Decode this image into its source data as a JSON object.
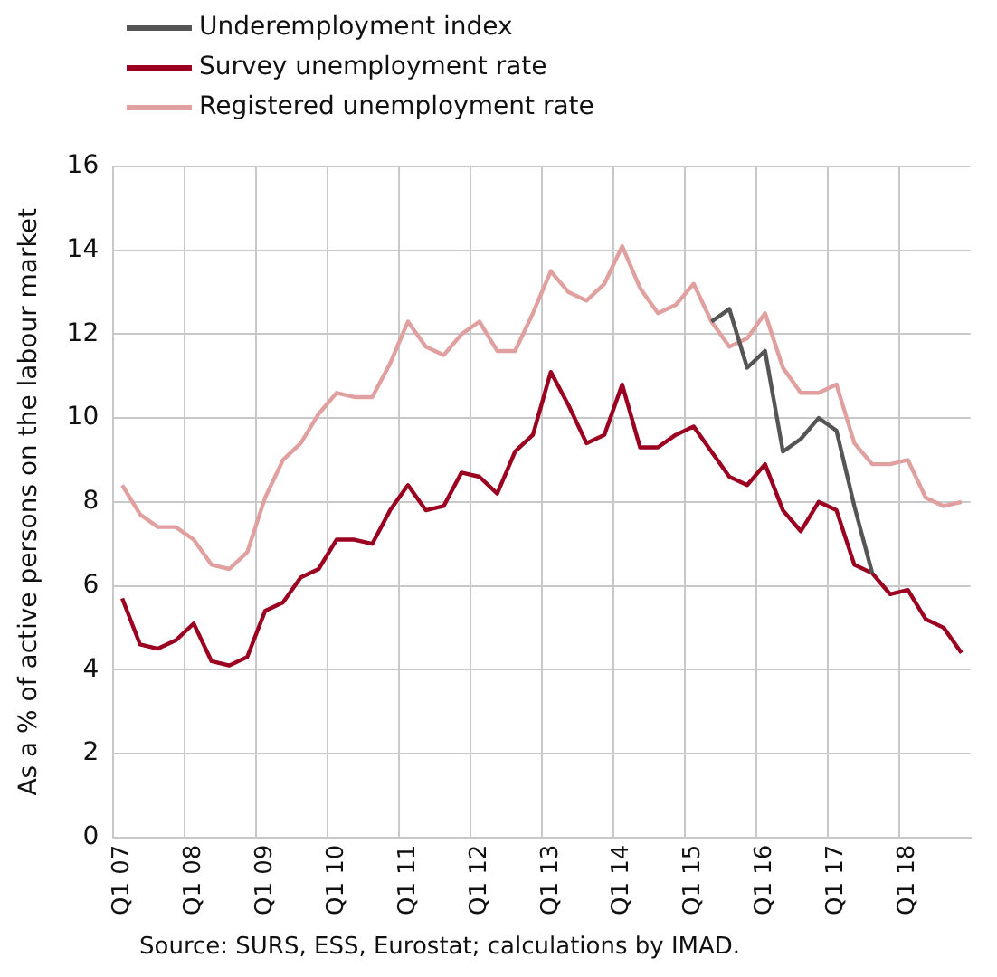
{
  "chart_data": {
    "type": "line",
    "ylabel": "As a % of active persons on the labour market",
    "categories": [
      "Q1 07",
      null,
      null,
      null,
      "Q1 08",
      null,
      null,
      null,
      "Q1 09",
      null,
      null,
      null,
      "Q1 10",
      null,
      null,
      null,
      "Q1 11",
      null,
      null,
      null,
      "Q1 12",
      null,
      null,
      null,
      "Q1 13",
      null,
      null,
      null,
      "Q1 14",
      null,
      null,
      null,
      "Q1 15",
      null,
      null,
      null,
      "Q1 16",
      null,
      null,
      null,
      "Q1 17",
      null,
      null,
      null,
      "Q1 18",
      null,
      null,
      null
    ],
    "series": [
      {
        "name": "Underemployment index",
        "color": "#555555",
        "values": [
          null,
          null,
          null,
          null,
          null,
          null,
          null,
          null,
          null,
          null,
          null,
          null,
          null,
          null,
          null,
          null,
          null,
          null,
          null,
          null,
          null,
          null,
          null,
          null,
          null,
          null,
          null,
          null,
          null,
          null,
          null,
          null,
          null,
          12.3,
          12.6,
          11.2,
          11.6,
          9.2,
          9.5,
          10.0,
          9.7,
          7.9,
          6.3,
          null,
          null,
          null,
          null,
          null
        ]
      },
      {
        "name": "Survey unemployment rate",
        "color": "#9b0020",
        "values": [
          5.7,
          4.6,
          4.5,
          4.7,
          5.1,
          4.2,
          4.1,
          4.3,
          5.4,
          5.6,
          6.2,
          6.4,
          7.1,
          7.1,
          7.0,
          7.8,
          8.4,
          7.8,
          7.9,
          8.7,
          8.6,
          8.2,
          9.2,
          9.6,
          11.1,
          10.3,
          9.4,
          9.6,
          10.8,
          9.3,
          9.3,
          9.6,
          9.8,
          9.2,
          8.6,
          8.4,
          8.9,
          7.8,
          7.3,
          8.0,
          7.8,
          6.5,
          6.3,
          5.8,
          5.9,
          5.2,
          5.0,
          4.4
        ]
      },
      {
        "name": "Registered unemployment rate",
        "color": "#e0a0a0",
        "values": [
          8.4,
          7.7,
          7.4,
          7.4,
          7.1,
          6.5,
          6.4,
          6.8,
          8.1,
          9.0,
          9.4,
          10.1,
          10.6,
          10.5,
          10.5,
          11.3,
          12.3,
          11.7,
          11.5,
          12.0,
          12.3,
          11.6,
          11.6,
          12.5,
          13.5,
          13.0,
          12.8,
          13.2,
          14.1,
          13.1,
          12.5,
          12.7,
          13.2,
          12.3,
          11.7,
          11.9,
          12.5,
          11.2,
          10.6,
          10.6,
          10.8,
          9.4,
          8.9,
          8.9,
          9.0,
          8.1,
          7.9,
          8.0
        ]
      }
    ],
    "ylim": [
      0,
      16
    ],
    "yticks": [
      0,
      2,
      4,
      6,
      8,
      10,
      12,
      14,
      16
    ],
    "grid": true,
    "legend": "top left",
    "marker": "none",
    "line_style": "solid",
    "annotations": [
      "Source: SURS, ESS, Eurostat; calculations by IMAD."
    ]
  }
}
